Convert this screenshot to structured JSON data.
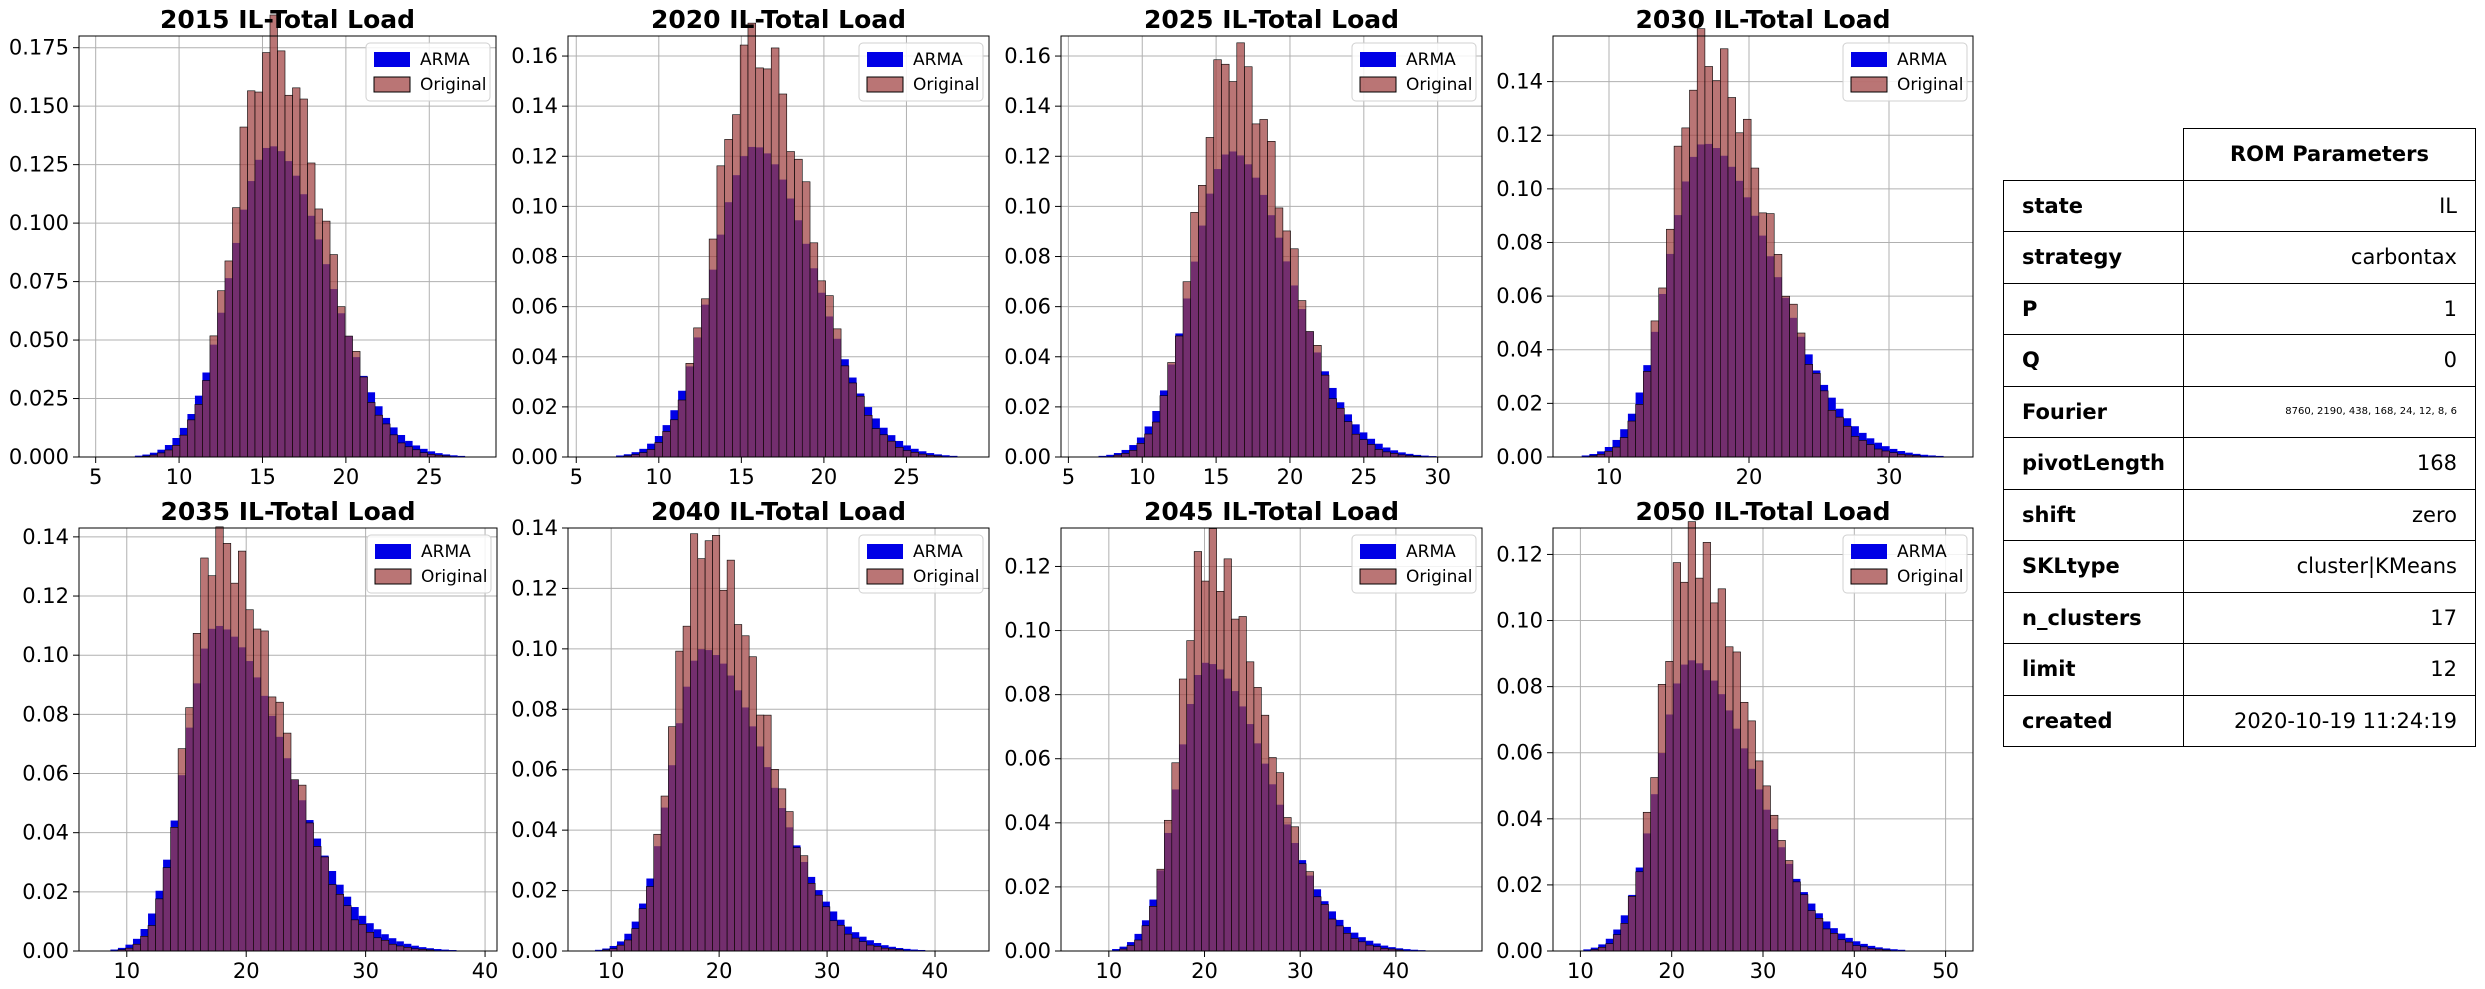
{
  "colors": {
    "arma": "#0000e6",
    "original": "#a04040",
    "grid": "#b0b0b0"
  },
  "legend": {
    "arma_label": "ARMA",
    "original_label": "Original"
  },
  "chart_data": [
    {
      "type": "bar",
      "title": "2015 IL-Total Load",
      "xlim": [
        4,
        29
      ],
      "xticks": [
        5,
        10,
        15,
        20,
        25
      ],
      "ylim": [
        0,
        0.18
      ],
      "yticks": [
        0.0,
        0.025,
        0.05,
        0.075,
        0.1,
        0.125,
        0.15,
        0.175
      ],
      "ytick_decimals": 3,
      "grid": true,
      "legend": "top-right",
      "peak": 15.5,
      "sigma_left": 2.4,
      "sigma_right": 3.4,
      "x_min": 6,
      "x_max": 27.5,
      "peak_arma": 0.133,
      "peak_original": 0.177,
      "bin_width": 0.45
    },
    {
      "type": "bar",
      "title": "2020 IL-Total Load",
      "xlim": [
        4.5,
        30
      ],
      "xticks": [
        5,
        10,
        15,
        20,
        25
      ],
      "ylim": [
        0,
        0.168
      ],
      "yticks": [
        0.0,
        0.02,
        0.04,
        0.06,
        0.08,
        0.1,
        0.12,
        0.14,
        0.16
      ],
      "ytick_decimals": 2,
      "grid": true,
      "legend": "top-right",
      "peak": 15.8,
      "sigma_left": 2.5,
      "sigma_right": 3.6,
      "x_min": 6,
      "x_max": 28.5,
      "peak_arma": 0.124,
      "peak_original": 0.165,
      "bin_width": 0.47
    },
    {
      "type": "bar",
      "title": "2025 IL-Total Load",
      "xlim": [
        4.5,
        33
      ],
      "xticks": [
        5,
        10,
        15,
        20,
        25,
        30
      ],
      "ylim": [
        0,
        0.168
      ],
      "yticks": [
        0.0,
        0.02,
        0.04,
        0.06,
        0.08,
        0.1,
        0.12,
        0.14,
        0.16
      ],
      "ytick_decimals": 2,
      "grid": true,
      "legend": "top-right",
      "peak": 16.0,
      "sigma_left": 2.6,
      "sigma_right": 4.0,
      "x_min": 6,
      "x_max": 31.5,
      "peak_arma": 0.122,
      "peak_original": 0.16,
      "bin_width": 0.52
    },
    {
      "type": "bar",
      "title": "2030 IL-Total Load",
      "xlim": [
        6,
        36
      ],
      "xticks": [
        10,
        20,
        30
      ],
      "ylim": [
        0,
        0.157
      ],
      "yticks": [
        0.0,
        0.02,
        0.04,
        0.06,
        0.08,
        0.1,
        0.12,
        0.14
      ],
      "ytick_decimals": 2,
      "grid": true,
      "legend": "top-right",
      "peak": 16.8,
      "sigma_left": 2.6,
      "sigma_right": 5.0,
      "x_min": 7.5,
      "x_max": 34.5,
      "peak_arma": 0.117,
      "peak_original": 0.15,
      "bin_width": 0.55
    },
    {
      "type": "bar",
      "title": "2035 IL-Total Load",
      "xlim": [
        6,
        41
      ],
      "xticks": [
        10,
        20,
        30,
        40
      ],
      "ylim": [
        0,
        0.143
      ],
      "yticks": [
        0.0,
        0.02,
        0.04,
        0.06,
        0.08,
        0.1,
        0.12,
        0.14
      ],
      "ytick_decimals": 2,
      "grid": true,
      "legend": "top-right",
      "peak": 17.5,
      "sigma_left": 2.6,
      "sigma_right": 5.8,
      "x_min": 8,
      "x_max": 39,
      "peak_arma": 0.11,
      "peak_original": 0.138,
      "bin_width": 0.63
    },
    {
      "type": "bar",
      "title": "2040 IL-Total Load",
      "xlim": [
        6,
        45
      ],
      "xticks": [
        10,
        20,
        30,
        40
      ],
      "ylim": [
        0,
        0.14
      ],
      "yticks": [
        0.0,
        0.02,
        0.04,
        0.06,
        0.08,
        0.1,
        0.12,
        0.14
      ],
      "ytick_decimals": 2,
      "grid": true,
      "legend": "top-right",
      "peak": 18.5,
      "sigma_left": 2.9,
      "sigma_right": 6.0,
      "x_min": 8.5,
      "x_max": 42.5,
      "peak_arma": 0.1,
      "peak_original": 0.136,
      "bin_width": 0.68
    },
    {
      "type": "bar",
      "title": "2045 IL-Total Load",
      "xlim": [
        5,
        49
      ],
      "xticks": [
        10,
        20,
        30,
        40
      ],
      "ylim": [
        0,
        0.132
      ],
      "yticks": [
        0.0,
        0.02,
        0.04,
        0.06,
        0.08,
        0.1,
        0.12
      ],
      "ytick_decimals": 2,
      "grid": true,
      "legend": "top-right",
      "peak": 20.2,
      "sigma_left": 3.0,
      "sigma_right": 6.6,
      "x_min": 8,
      "x_max": 47,
      "peak_arma": 0.09,
      "peak_original": 0.124,
      "bin_width": 0.78
    },
    {
      "type": "bar",
      "title": "2050 IL-Total Load",
      "xlim": [
        7,
        53
      ],
      "xticks": [
        10,
        20,
        30,
        40,
        50
      ],
      "ylim": [
        0,
        0.128
      ],
      "yticks": [
        0.0,
        0.02,
        0.04,
        0.06,
        0.08,
        0.1,
        0.12
      ],
      "ytick_decimals": 2,
      "grid": true,
      "legend": "top-right",
      "peak": 22.0,
      "sigma_left": 3.5,
      "sigma_right": 7.0,
      "x_min": 9.5,
      "x_max": 51,
      "peak_arma": 0.088,
      "peak_original": 0.122,
      "bin_width": 0.82
    }
  ],
  "table": {
    "header": "ROM Parameters",
    "rows": [
      {
        "key": "state",
        "value": "IL"
      },
      {
        "key": "strategy",
        "value": "carbontax"
      },
      {
        "key": "P",
        "value": "1"
      },
      {
        "key": "Q",
        "value": "0"
      },
      {
        "key": "Fourier",
        "value": "8760, 2190, 438, 168, 24, 12, 8, 6"
      },
      {
        "key": "pivotLength",
        "value": "168"
      },
      {
        "key": "shift",
        "value": "zero"
      },
      {
        "key": "SKLtype",
        "value": "cluster|KMeans"
      },
      {
        "key": "n_clusters",
        "value": "17"
      },
      {
        "key": "limit",
        "value": "12"
      },
      {
        "key": "created",
        "value": "2020-10-19 11:24:19"
      }
    ]
  }
}
